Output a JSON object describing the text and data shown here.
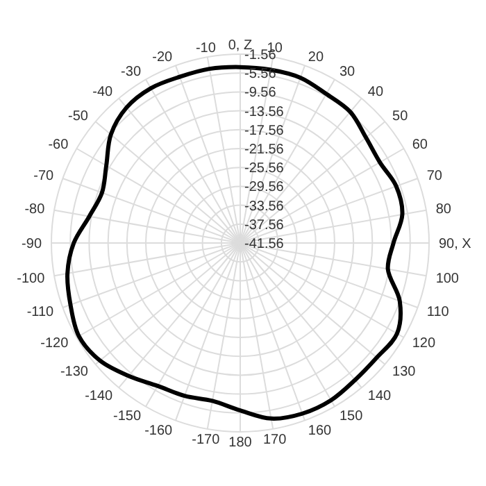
{
  "chart_data": {
    "type": "radar",
    "categories": [
      "0, Z",
      "10",
      "20",
      "30",
      "40",
      "50",
      "60",
      "70",
      "80",
      "90, X",
      "100",
      "110",
      "120",
      "130",
      "140",
      "150",
      "160",
      "170",
      "180",
      "-170",
      "-160",
      "-150",
      "-140",
      "-130",
      "-120",
      "-110",
      "-100",
      "-90",
      "-80",
      "-70",
      "-60",
      "-50",
      "-40",
      "-30",
      "-20",
      "-10"
    ],
    "series": [
      {
        "color": "#000000",
        "values": [
          -4.3,
          -4.3,
          -4.3,
          -5.1,
          -5.3,
          -6.8,
          -7.4,
          -6.4,
          -6.7,
          -9.1,
          -9.8,
          -5.6,
          -3.2,
          -3.8,
          -3.7,
          -3.1,
          -3.1,
          -3.8,
          -6.1,
          -7.6,
          -7.1,
          -6.6,
          -4.8,
          -2.8,
          -2.1,
          -3.3,
          -4.4,
          -6.3,
          -9.1,
          -10.4,
          -8.8,
          -5.8,
          -4.1,
          -3.7,
          -4.1,
          -4.1
        ]
      }
    ],
    "ylim": [
      -41.56,
      -1.56
    ],
    "yticks": [
      -41.56,
      -37.56,
      -33.56,
      -29.56,
      -25.56,
      -21.56,
      -17.56,
      -13.56,
      -9.56,
      -5.56,
      -1.56
    ],
    "grid": true,
    "marker": "none",
    "line_style": "solid"
  }
}
